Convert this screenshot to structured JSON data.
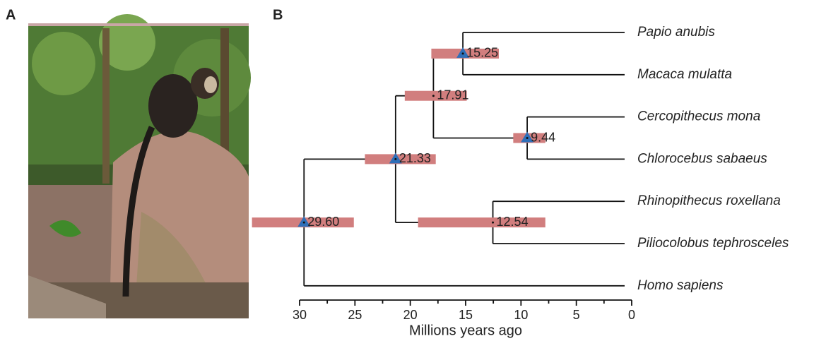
{
  "panels": {
    "a": "A",
    "b": "B"
  },
  "tree": {
    "xlim": [
      30,
      0
    ],
    "xticks": [
      30,
      25,
      20,
      15,
      10,
      5,
      0
    ],
    "xminor": [
      27.5,
      22.5,
      17.5,
      12.5,
      7.5,
      2.5
    ],
    "xlabel": "Millions years ago",
    "nodes": [
      {
        "age": {
          "value": 29.6,
          "label": "29.60"
        },
        "hpd": [
          34.3,
          25.1
        ],
        "marker": true,
        "children": [
          1,
          12
        ]
      },
      {
        "age": {
          "value": 21.33,
          "label": "21.33"
        },
        "hpd": [
          24.1,
          17.7
        ],
        "marker": true,
        "children": [
          2,
          9
        ]
      },
      {
        "age": {
          "value": 17.91,
          "label": "17.91"
        },
        "hpd": [
          20.5,
          14.9
        ],
        "marker": false,
        "children": [
          3,
          6
        ]
      },
      {
        "age": {
          "value": 15.25,
          "label": "15.25"
        },
        "hpd": [
          18.1,
          12.0
        ],
        "marker": true,
        "children": [
          4,
          5
        ]
      },
      {
        "label": "Papio anubis"
      },
      {
        "label": "Macaca mulatta"
      },
      {
        "age": {
          "value": 9.44,
          "label": "9.44"
        },
        "hpd": [
          10.7,
          7.8
        ],
        "marker": true,
        "children": [
          7,
          8
        ]
      },
      {
        "label": "Cercopithecus mona"
      },
      {
        "label": "Chlorocebus sabaeus"
      },
      {
        "age": {
          "value": 12.54,
          "label": "12.54"
        },
        "hpd": [
          19.3,
          7.8
        ],
        "marker": false,
        "children": [
          10,
          11
        ]
      },
      {
        "label": "Rhinopithecus roxellana"
      },
      {
        "label": "Piliocolobus tephrosceles"
      },
      {
        "label": "Homo sapiens"
      }
    ]
  }
}
